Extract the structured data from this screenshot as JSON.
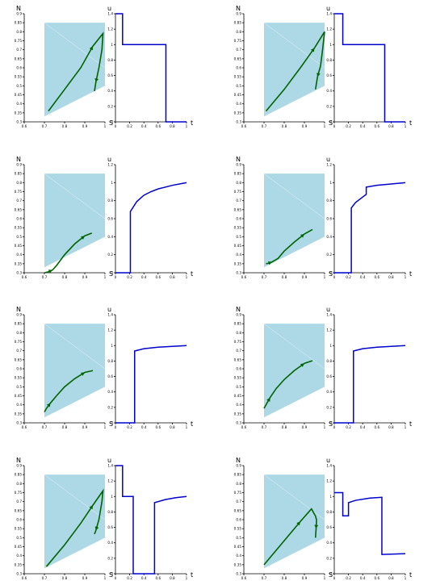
{
  "chart_data": [
    {
      "type": "line",
      "panel": "phase",
      "row": 1,
      "col": 1,
      "xlabel": "S",
      "ylabel": "N",
      "xlim": [
        0.6,
        1.0
      ],
      "ylim": [
        0.3,
        0.9
      ],
      "xticks": [
        "0.6",
        "0.7",
        "0.8",
        "0.9",
        "1"
      ],
      "yticks": [
        "0.3",
        "0.35",
        "0.4",
        "0.45",
        "0.5",
        "0.55",
        "0.6",
        "0.65",
        "0.7",
        "0.75",
        "0.8",
        "0.85",
        "0.9"
      ],
      "x": [
        0.72,
        0.8,
        0.88,
        0.94,
        0.99,
        0.985,
        0.97,
        0.955,
        0.948
      ],
      "y": [
        0.36,
        0.48,
        0.6,
        0.72,
        0.79,
        0.7,
        0.6,
        0.52,
        0.47
      ]
    },
    {
      "type": "line",
      "panel": "control",
      "row": 1,
      "col": 2,
      "xlabel": "t",
      "ylabel": "u",
      "xlim": [
        0,
        1
      ],
      "ylim": [
        0,
        1.4
      ],
      "xticks": [
        "0",
        "0.2",
        "0.4",
        "0.6",
        "0.8",
        "1"
      ],
      "yticks": [
        "0",
        "0.2",
        "0.4",
        "0.6",
        "0.8",
        "1",
        "1.2",
        "1.4"
      ],
      "x": [
        0,
        0.1,
        0.1,
        0.71,
        0.71,
        1.0
      ],
      "y": [
        1.4,
        1.4,
        1.0,
        1.0,
        0,
        0
      ]
    },
    {
      "type": "line",
      "panel": "phase",
      "row": 1,
      "col": 3,
      "xlabel": "S",
      "ylabel": "N",
      "xlim": [
        0.6,
        1.0
      ],
      "ylim": [
        0.3,
        0.9
      ],
      "xticks": [
        "0.6",
        "0.7",
        "0.8",
        "0.9",
        "1"
      ],
      "yticks": [
        "0.3",
        "0.35",
        "0.4",
        "0.45",
        "0.5",
        "0.55",
        "0.6",
        "0.65",
        "0.7",
        "0.75",
        "0.8",
        "0.85",
        "0.9"
      ],
      "x": [
        0.71,
        0.8,
        0.88,
        0.95,
        1.0,
        0.99,
        0.98,
        0.965,
        0.955
      ],
      "y": [
        0.36,
        0.48,
        0.6,
        0.71,
        0.8,
        0.7,
        0.61,
        0.55,
        0.48
      ]
    },
    {
      "type": "line",
      "panel": "control",
      "row": 1,
      "col": 4,
      "xlabel": "t",
      "ylabel": "u",
      "xlim": [
        0,
        1
      ],
      "ylim": [
        0,
        1.4
      ],
      "xticks": [
        "0",
        "0.2",
        "0.4",
        "0.6",
        "0.8",
        "1"
      ],
      "yticks": [
        "0",
        "0.2",
        "0.4",
        "0.6",
        "0.8",
        "1",
        "1.2",
        "1.4"
      ],
      "x": [
        0,
        0.12,
        0.12,
        0.71,
        0.71,
        1.0
      ],
      "y": [
        1.4,
        1.4,
        1.0,
        1.0,
        0,
        0
      ]
    },
    {
      "type": "line",
      "panel": "phase",
      "row": 2,
      "col": 1,
      "xlabel": "S",
      "ylabel": "N",
      "xlim": [
        0.6,
        1.0
      ],
      "ylim": [
        0.3,
        0.9
      ],
      "xticks": [
        "0.6",
        "0.7",
        "0.8",
        "0.9",
        "1"
      ],
      "yticks": [
        "0.3",
        "0.35",
        "0.4",
        "0.45",
        "0.5",
        "0.55",
        "0.6",
        "0.65",
        "0.7",
        "0.75",
        "0.8",
        "0.85",
        "0.9"
      ],
      "x": [
        0.7,
        0.72,
        0.74,
        0.76,
        0.8,
        0.85,
        0.9,
        0.935
      ],
      "y": [
        0.3,
        0.305,
        0.315,
        0.34,
        0.4,
        0.46,
        0.505,
        0.52
      ]
    },
    {
      "type": "line",
      "panel": "control",
      "row": 2,
      "col": 2,
      "xlabel": "t",
      "ylabel": "u",
      "xlim": [
        0,
        1
      ],
      "ylim": [
        0,
        1.2
      ],
      "xticks": [
        "0",
        "0.2",
        "0.4",
        "0.6",
        "0.8",
        "1"
      ],
      "yticks": [
        "0",
        "0.2",
        "0.4",
        "0.6",
        "0.8",
        "1",
        "1.2"
      ],
      "x": [
        0,
        0.21,
        0.21,
        0.3,
        0.4,
        0.5,
        0.6,
        0.7,
        0.8,
        0.9,
        1.0
      ],
      "y": [
        0,
        0,
        0.68,
        0.79,
        0.86,
        0.9,
        0.93,
        0.95,
        0.97,
        0.985,
        1.0
      ]
    },
    {
      "type": "line",
      "panel": "phase",
      "row": 2,
      "col": 3,
      "xlabel": "S",
      "ylabel": "N",
      "xlim": [
        0.6,
        1.0
      ],
      "ylim": [
        0.3,
        0.9
      ],
      "xticks": [
        "0.6",
        "0.7",
        "0.8",
        "0.9",
        "1"
      ],
      "yticks": [
        "0.3",
        "0.35",
        "0.4",
        "0.45",
        "0.5",
        "0.55",
        "0.6",
        "0.65",
        "0.7",
        "0.75",
        "0.8",
        "0.85",
        "0.9"
      ],
      "x": [
        0.71,
        0.72,
        0.74,
        0.77,
        0.8,
        0.85,
        0.9,
        0.94
      ],
      "y": [
        0.35,
        0.352,
        0.36,
        0.38,
        0.42,
        0.47,
        0.515,
        0.54
      ]
    },
    {
      "type": "line",
      "panel": "control",
      "row": 2,
      "col": 4,
      "xlabel": "t",
      "ylabel": "u",
      "xlim": [
        0,
        1
      ],
      "ylim": [
        0,
        1.2
      ],
      "xticks": [
        "0",
        "0.2",
        "0.4",
        "0.6",
        "0.8",
        "1"
      ],
      "yticks": [
        "0",
        "0.2",
        "0.4",
        "0.6",
        "0.8",
        "1",
        "1.2"
      ],
      "x": [
        0,
        0.24,
        0.24,
        0.3,
        0.4,
        0.45,
        0.45,
        0.6,
        0.8,
        1.0
      ],
      "y": [
        0,
        0,
        0.72,
        0.78,
        0.84,
        0.87,
        0.95,
        0.97,
        0.985,
        1.0
      ]
    },
    {
      "type": "line",
      "panel": "phase",
      "row": 3,
      "col": 1,
      "xlabel": "S",
      "ylabel": "N",
      "xlim": [
        0.6,
        1.0
      ],
      "ylim": [
        0.3,
        0.9
      ],
      "xticks": [
        "0.6",
        "0.7",
        "0.8",
        "0.9",
        "1"
      ],
      "yticks": [
        "0.3",
        "0.35",
        "0.4",
        "0.45",
        "0.5",
        "0.55",
        "0.6",
        "0.65",
        "0.7",
        "0.75",
        "0.8",
        "0.85",
        "0.9"
      ],
      "x": [
        0.7,
        0.71,
        0.73,
        0.76,
        0.8,
        0.85,
        0.9,
        0.94
      ],
      "y": [
        0.36,
        0.38,
        0.41,
        0.45,
        0.5,
        0.545,
        0.58,
        0.59
      ]
    },
    {
      "type": "line",
      "panel": "control",
      "row": 3,
      "col": 2,
      "xlabel": "t",
      "ylabel": "u",
      "xlim": [
        0,
        1
      ],
      "ylim": [
        0,
        1.4
      ],
      "xticks": [
        "0",
        "0.2",
        "0.4",
        "0.6",
        "0.8",
        "1"
      ],
      "yticks": [
        "0",
        "0.2",
        "0.4",
        "0.6",
        "0.8",
        "1",
        "1.2",
        "1.4"
      ],
      "x": [
        0,
        0.27,
        0.27,
        0.4,
        0.6,
        0.8,
        1.0
      ],
      "y": [
        0,
        0,
        0.93,
        0.96,
        0.98,
        0.99,
        1.0
      ]
    },
    {
      "type": "line",
      "panel": "phase",
      "row": 3,
      "col": 3,
      "xlabel": "S",
      "ylabel": "N",
      "xlim": [
        0.6,
        1.0
      ],
      "ylim": [
        0.3,
        0.9
      ],
      "xticks": [
        "0.6",
        "0.7",
        "0.8",
        "0.9",
        "1"
      ],
      "yticks": [
        "0.3",
        "0.35",
        "0.4",
        "0.45",
        "0.5",
        "0.55",
        "0.6",
        "0.65",
        "0.7",
        "0.75",
        "0.8",
        "0.85",
        "0.9"
      ],
      "x": [
        0.7,
        0.71,
        0.73,
        0.76,
        0.8,
        0.85,
        0.9,
        0.94
      ],
      "y": [
        0.38,
        0.4,
        0.44,
        0.49,
        0.54,
        0.59,
        0.63,
        0.645
      ]
    },
    {
      "type": "line",
      "panel": "control",
      "row": 3,
      "col": 4,
      "xlabel": "t",
      "ylabel": "u",
      "xlim": [
        0,
        1
      ],
      "ylim": [
        0,
        1.4
      ],
      "xticks": [
        "0",
        "0.2",
        "0.4",
        "0.6",
        "0.8",
        "1"
      ],
      "yticks": [
        "0",
        "0.2",
        "0.4",
        "0.6",
        "0.8",
        "1",
        "1.2",
        "1.4"
      ],
      "x": [
        0,
        0.27,
        0.27,
        0.4,
        0.6,
        0.8,
        1.0
      ],
      "y": [
        0,
        0,
        0.93,
        0.96,
        0.98,
        0.99,
        1.0
      ]
    },
    {
      "type": "line",
      "panel": "phase",
      "row": 4,
      "col": 1,
      "xlabel": "S",
      "ylabel": "N",
      "xlim": [
        0.6,
        1.0
      ],
      "ylim": [
        0.3,
        0.9
      ],
      "xticks": [
        "0.6",
        "0.7",
        "0.8",
        "0.9",
        "1"
      ],
      "yticks": [
        "0.3",
        "0.35",
        "0.4",
        "0.45",
        "0.5",
        "0.55",
        "0.6",
        "0.65",
        "0.7",
        "0.75",
        "0.8",
        "0.85",
        "0.9"
      ],
      "x": [
        0.71,
        0.8,
        0.88,
        0.94,
        0.99,
        0.985,
        0.97,
        0.955,
        0.948
      ],
      "y": [
        0.34,
        0.46,
        0.58,
        0.68,
        0.76,
        0.7,
        0.6,
        0.54,
        0.52
      ]
    },
    {
      "type": "line",
      "panel": "control",
      "row": 4,
      "col": 2,
      "xlabel": "t",
      "ylabel": "u",
      "xlim": [
        0,
        1
      ],
      "ylim": [
        0,
        1.4
      ],
      "xticks": [
        "0",
        "0.2",
        "0.4",
        "0.6",
        "0.8",
        "1"
      ],
      "yticks": [
        "0",
        "0.2",
        "0.4",
        "0.6",
        "0.8",
        "1",
        "1.2",
        "1.4"
      ],
      "x": [
        0,
        0.1,
        0.1,
        0.25,
        0.25,
        0.55,
        0.55,
        0.7,
        0.85,
        1.0
      ],
      "y": [
        1.4,
        1.4,
        1.0,
        1.0,
        0,
        0,
        0.92,
        0.96,
        0.985,
        1.0
      ]
    },
    {
      "type": "line",
      "panel": "phase",
      "row": 4,
      "col": 3,
      "xlabel": "S",
      "ylabel": "N",
      "xlim": [
        0.6,
        1.0
      ],
      "ylim": [
        0.3,
        0.9
      ],
      "xticks": [
        "0.6",
        "0.7",
        "0.8",
        "0.9",
        "1"
      ],
      "yticks": [
        "0.3",
        "0.35",
        "0.4",
        "0.45",
        "0.5",
        "0.55",
        "0.6",
        "0.65",
        "0.7",
        "0.75",
        "0.8",
        "0.85",
        "0.9"
      ],
      "x": [
        0.7,
        0.76,
        0.82,
        0.88,
        0.935,
        0.945,
        0.955,
        0.96,
        0.958,
        0.955
      ],
      "y": [
        0.35,
        0.43,
        0.51,
        0.59,
        0.66,
        0.64,
        0.62,
        0.6,
        0.55,
        0.5
      ]
    },
    {
      "type": "line",
      "panel": "control",
      "row": 4,
      "col": 4,
      "xlabel": "t",
      "ylabel": "u",
      "xlim": [
        0,
        1
      ],
      "ylim": [
        0,
        1.4
      ],
      "xticks": [
        "0",
        "0.2",
        "0.4",
        "0.6",
        "0.8",
        "1"
      ],
      "yticks": [
        "0",
        "0.2",
        "0.4",
        "0.6",
        "0.8",
        "1",
        "1.2",
        "1.4"
      ],
      "x": [
        0,
        0.12,
        0.12,
        0.2,
        0.2,
        0.3,
        0.5,
        0.67,
        0.67,
        1.0
      ],
      "y": [
        1.05,
        1.05,
        0.75,
        0.75,
        0.92,
        0.95,
        0.98,
        0.99,
        0.25,
        0.26
      ]
    }
  ],
  "colors": {
    "region": "#add8e6",
    "trajectory": "#006400",
    "control": "#0000cd"
  }
}
